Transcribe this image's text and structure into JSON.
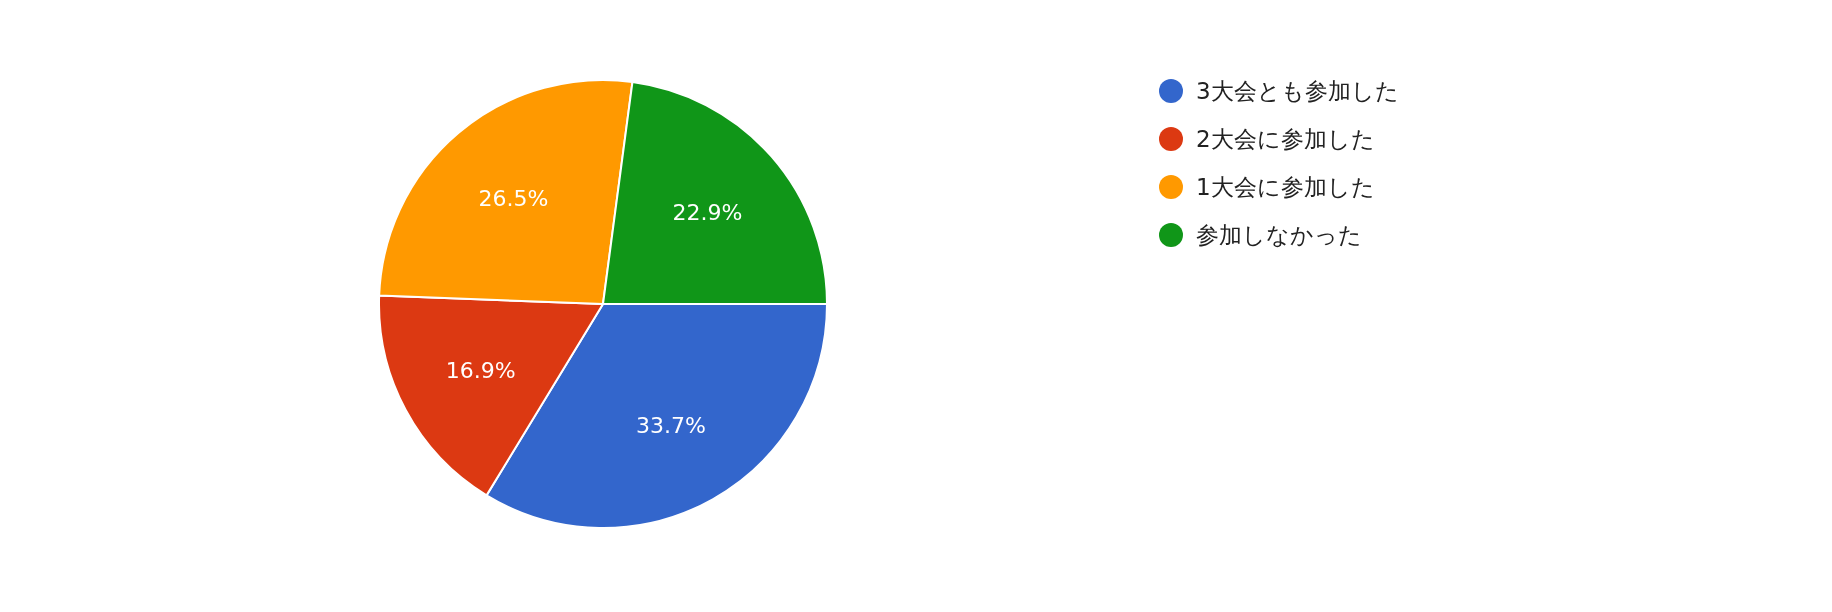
{
  "chart_data": {
    "type": "pie",
    "categories": [
      "3大会とも参加した",
      "2大会に参加した",
      "1大会に参加した",
      "参加しなかった"
    ],
    "values": [
      33.7,
      16.9,
      26.5,
      22.9
    ],
    "colors": [
      "#3366cc",
      "#dc3912",
      "#ff9900",
      "#109618"
    ],
    "value_labels": [
      "33.7%",
      "16.9%",
      "26.5%",
      "22.9%"
    ],
    "legend": "right"
  }
}
